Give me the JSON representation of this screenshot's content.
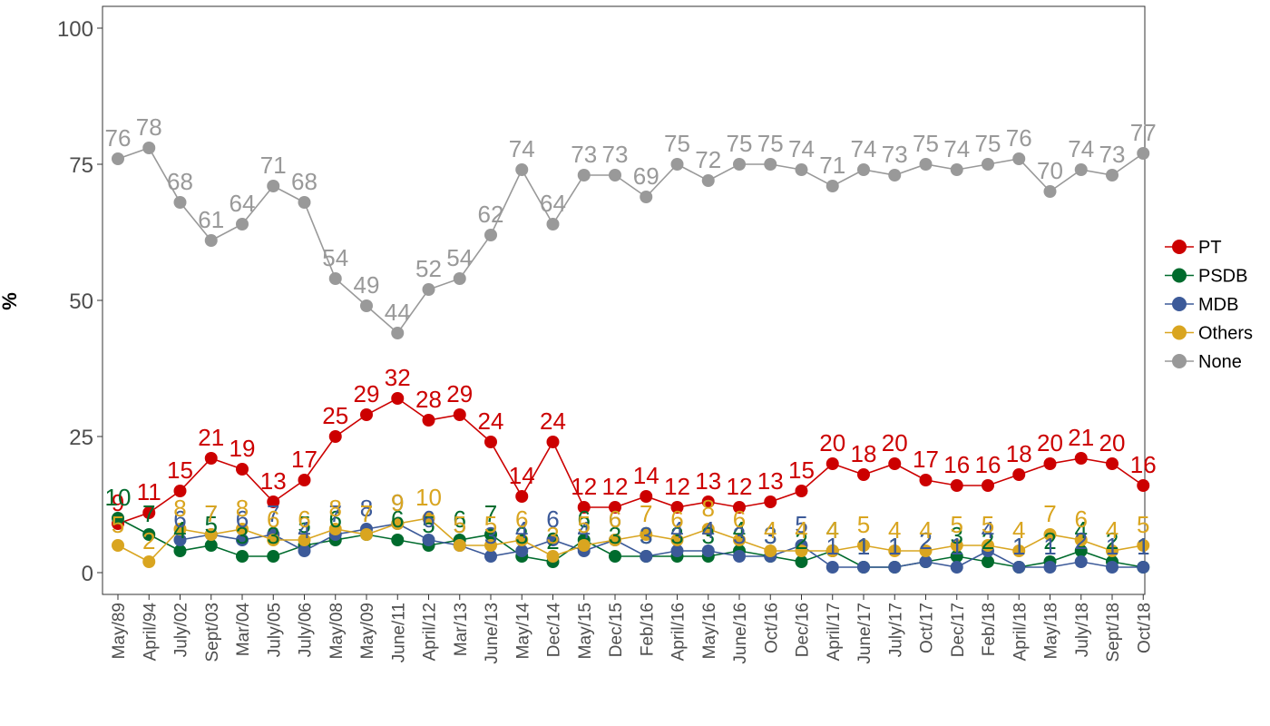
{
  "chart_data": {
    "type": "line",
    "ylabel": "%",
    "xlabel": "",
    "ylim": [
      -4,
      104
    ],
    "yticks": [
      0,
      25,
      50,
      75,
      100
    ],
    "grid": false,
    "legend_position": "right",
    "categories": [
      "May/89",
      "April/94",
      "July/02",
      "Sept/03",
      "Mar/04",
      "July/05",
      "July/06",
      "May/08",
      "May/09",
      "June/11",
      "April/12",
      "Mar/13",
      "June/13",
      "May/14",
      "Dec/14",
      "May/15",
      "Dec/15",
      "Feb/16",
      "April/16",
      "May/16",
      "June/16",
      "Oct/16",
      "Dec/16",
      "April/17",
      "June/17",
      "July/17",
      "Oct/17",
      "Dec/17",
      "Feb/18",
      "April/18",
      "May/18",
      "July/18",
      "Sept/18",
      "Oct/18"
    ],
    "series": [
      {
        "name": "PT",
        "color": "#cc0000",
        "values": [
          9,
          11,
          15,
          21,
          19,
          13,
          17,
          25,
          29,
          32,
          28,
          29,
          24,
          14,
          24,
          12,
          12,
          14,
          12,
          13,
          12,
          13,
          15,
          20,
          18,
          20,
          17,
          16,
          16,
          18,
          20,
          21,
          20,
          16
        ]
      },
      {
        "name": "PSDB",
        "color": "#006b2d",
        "values": [
          10,
          7,
          4,
          5,
          3,
          3,
          5,
          6,
          7,
          6,
          5,
          6,
          7,
          3,
          2,
          6,
          3,
          3,
          3,
          3,
          4,
          3,
          2,
          4,
          1,
          1,
          2,
          3,
          2,
          1,
          2,
          4,
          2,
          1
        ]
      },
      {
        "name": "MDB",
        "color": "#3c5a99",
        "values": [
          null,
          null,
          6,
          7,
          6,
          7,
          4,
          7,
          8,
          9,
          6,
          5,
          3,
          4,
          6,
          4,
          6,
          3,
          4,
          4,
          3,
          3,
          5,
          1,
          1,
          1,
          2,
          1,
          4,
          1,
          1,
          2,
          1,
          1
        ]
      },
      {
        "name": "Others",
        "color": "#d9a520",
        "values": [
          5,
          2,
          8,
          7,
          8,
          6,
          6,
          8,
          7,
          9,
          10,
          5,
          5,
          6,
          3,
          5,
          6,
          7,
          6,
          8,
          6,
          4,
          4,
          4,
          5,
          4,
          4,
          5,
          5,
          4,
          7,
          6,
          4,
          5
        ]
      },
      {
        "name": "None",
        "color": "#999999",
        "values": [
          76,
          78,
          68,
          61,
          64,
          71,
          68,
          54,
          49,
          44,
          52,
          54,
          62,
          74,
          64,
          73,
          73,
          69,
          75,
          72,
          75,
          75,
          74,
          71,
          74,
          73,
          75,
          74,
          75,
          76,
          70,
          74,
          73,
          77
        ]
      }
    ]
  }
}
